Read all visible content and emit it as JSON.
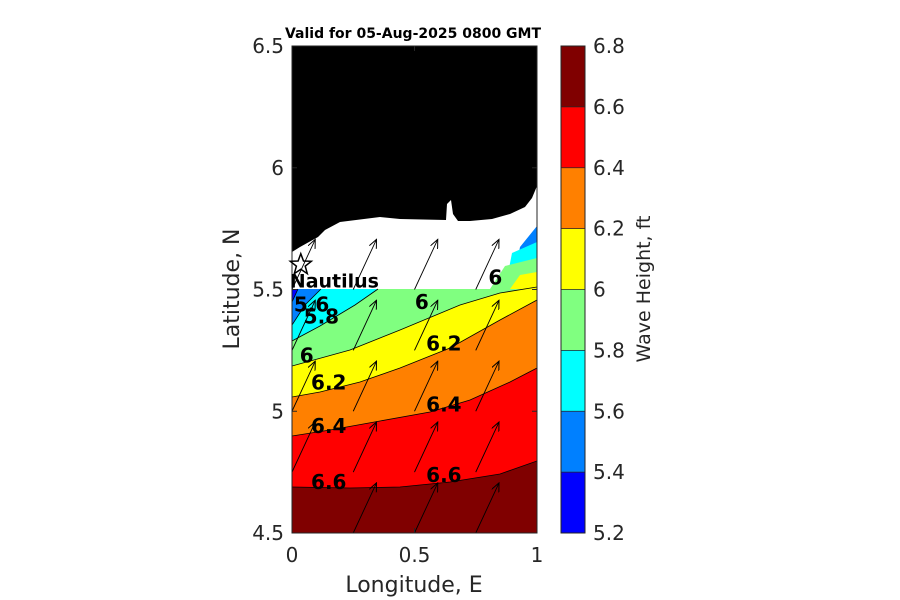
{
  "chart_data": {
    "type": "contour",
    "title": "Valid for 05-Aug-2025 0800 GMT",
    "xlabel": "Longitude, E",
    "ylabel": "Latitude, N",
    "xlim": [
      0,
      1
    ],
    "ylim": [
      4.5,
      6.5
    ],
    "xticks": [
      "0",
      "0.5",
      "1"
    ],
    "yticks": [
      "4.5",
      "5",
      "5.5",
      "6",
      "6.5"
    ],
    "colorbar": {
      "label": "Wave Height, ft",
      "levels": [
        5.2,
        5.4,
        5.6,
        5.8,
        6.0,
        6.2,
        6.4,
        6.6,
        6.8
      ],
      "tick_labels": [
        "5.2",
        "5.4",
        "5.6",
        "5.8",
        "6",
        "6.2",
        "6.4",
        "6.6",
        "6.8"
      ],
      "colors": [
        "#0000ff",
        "#0080ff",
        "#00ffff",
        "#80ff80",
        "#ffff00",
        "#ff8000",
        "#ff0000",
        "#800000"
      ]
    },
    "land_color": "#000000",
    "nodata_color": "#ffffff",
    "station": {
      "name": "Nautilus",
      "lon": 0.04,
      "lat": 5.61
    },
    "contour_labels": [
      {
        "text": "5.6",
        "lon": 0.08,
        "lat": 5.41
      },
      {
        "text": "5.8",
        "lon": 0.12,
        "lat": 5.36
      },
      {
        "text": "6",
        "lon": 0.06,
        "lat": 5.2
      },
      {
        "text": "6.2",
        "lon": 0.15,
        "lat": 5.09
      },
      {
        "text": "6.4",
        "lon": 0.15,
        "lat": 4.91
      },
      {
        "text": "6.6",
        "lon": 0.15,
        "lat": 4.68
      },
      {
        "text": "6",
        "lon": 0.53,
        "lat": 5.42
      },
      {
        "text": "6.2",
        "lon": 0.62,
        "lat": 5.25
      },
      {
        "text": "6.4",
        "lon": 0.62,
        "lat": 5.0
      },
      {
        "text": "6.6",
        "lon": 0.62,
        "lat": 4.71
      },
      {
        "text": "6",
        "lon": 0.83,
        "lat": 5.52
      }
    ],
    "vectors": [
      {
        "lon": 0.0,
        "lat": 4.75,
        "u": 0.13,
        "v": 0.28
      },
      {
        "lon": 0.25,
        "lat": 4.5,
        "u": 0.13,
        "v": 0.28
      },
      {
        "lon": 0.5,
        "lat": 4.5,
        "u": 0.13,
        "v": 0.28
      },
      {
        "lon": 0.75,
        "lat": 4.5,
        "u": 0.13,
        "v": 0.28
      },
      {
        "lon": 0.0,
        "lat": 5.0,
        "u": 0.13,
        "v": 0.28
      },
      {
        "lon": 0.25,
        "lat": 4.75,
        "u": 0.13,
        "v": 0.28
      },
      {
        "lon": 0.5,
        "lat": 4.75,
        "u": 0.13,
        "v": 0.28
      },
      {
        "lon": 0.75,
        "lat": 4.75,
        "u": 0.13,
        "v": 0.28
      },
      {
        "lon": 0.0,
        "lat": 5.25,
        "u": 0.13,
        "v": 0.28
      },
      {
        "lon": 0.25,
        "lat": 5.0,
        "u": 0.13,
        "v": 0.28
      },
      {
        "lon": 0.5,
        "lat": 5.0,
        "u": 0.13,
        "v": 0.28
      },
      {
        "lon": 0.75,
        "lat": 5.0,
        "u": 0.13,
        "v": 0.28
      },
      {
        "lon": 0.0,
        "lat": 5.5,
        "u": 0.13,
        "v": 0.28
      },
      {
        "lon": 0.25,
        "lat": 5.25,
        "u": 0.13,
        "v": 0.28
      },
      {
        "lon": 0.5,
        "lat": 5.25,
        "u": 0.13,
        "v": 0.28
      },
      {
        "lon": 0.75,
        "lat": 5.25,
        "u": 0.13,
        "v": 0.28
      },
      {
        "lon": 0.25,
        "lat": 5.5,
        "u": 0.13,
        "v": 0.28
      },
      {
        "lon": 0.5,
        "lat": 5.5,
        "u": 0.13,
        "v": 0.28
      },
      {
        "lon": 0.75,
        "lat": 5.5,
        "u": 0.13,
        "v": 0.28
      }
    ]
  }
}
